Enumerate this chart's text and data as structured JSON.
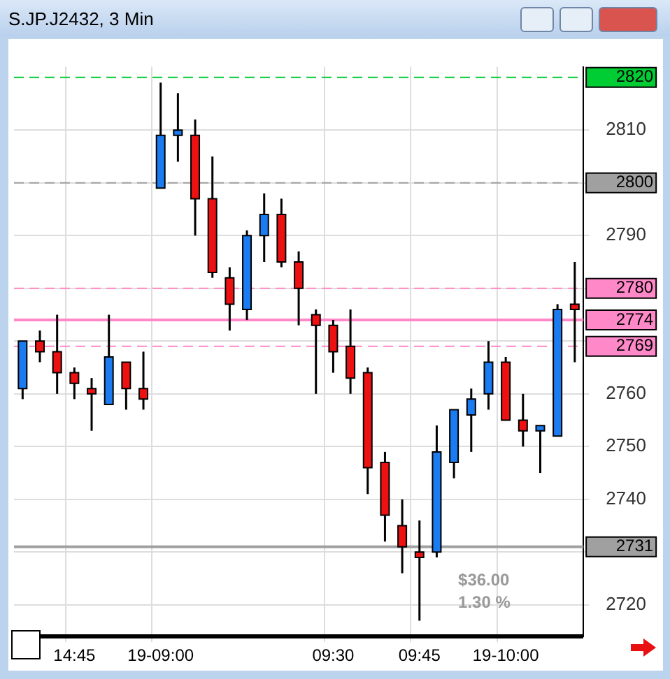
{
  "chart_data": {
    "type": "candlestick",
    "title": "S.JP.J2432, 3 Min",
    "categories": [
      null,
      null,
      null,
      "14:45",
      null,
      null,
      null,
      null,
      "19-09:00",
      null,
      null,
      null,
      null,
      null,
      null,
      null,
      null,
      null,
      "09:30",
      null,
      null,
      null,
      null,
      "09:45",
      null,
      null,
      null,
      null,
      "19-10:00",
      null,
      null,
      null,
      null
    ],
    "ohlc": [
      [
        2761,
        2770,
        2759,
        2770
      ],
      [
        2770,
        2772,
        2766,
        2768
      ],
      [
        2768,
        2775,
        2760,
        2764
      ],
      [
        2764,
        2765,
        2759,
        2762
      ],
      [
        2761,
        2763,
        2753,
        2760
      ],
      [
        2758,
        2775,
        2758,
        2767
      ],
      [
        2766,
        2766,
        2757,
        2761
      ],
      [
        2761,
        2768,
        2757,
        2759
      ],
      [
        2799,
        2819,
        2799,
        2809
      ],
      [
        2809,
        2817,
        2804,
        2810
      ],
      [
        2809,
        2812,
        2790,
        2797
      ],
      [
        2797,
        2805,
        2782,
        2783
      ],
      [
        2782,
        2784,
        2772,
        2777
      ],
      [
        2776,
        2791,
        2774,
        2790
      ],
      [
        2790,
        2798,
        2785,
        2794
      ],
      [
        2794,
        2797,
        2784,
        2785
      ],
      [
        2785,
        2787,
        2773,
        2780
      ],
      [
        2775,
        2776,
        2760,
        2773
      ],
      [
        2773,
        2774,
        2764,
        2768
      ],
      [
        2769,
        2776,
        2760,
        2763
      ],
      [
        2764,
        2765,
        2741,
        2746
      ],
      [
        2747,
        2749,
        2732,
        2737
      ],
      [
        2735,
        2740,
        2726,
        2731
      ],
      [
        2730,
        2736,
        2717,
        2729
      ],
      [
        2730,
        2754,
        2729,
        2749
      ],
      [
        2747,
        2757,
        2744,
        2757
      ],
      [
        2756,
        2761,
        2749,
        2759
      ],
      [
        2760,
        2770,
        2757,
        2766
      ],
      [
        2766,
        2767,
        2755,
        2755
      ],
      [
        2755,
        2760,
        2750,
        2753
      ],
      [
        2753,
        2754,
        2745,
        2754
      ],
      [
        2752,
        2777,
        2752,
        2776
      ],
      [
        2777,
        2785,
        2766,
        2776
      ]
    ],
    "colors": [
      "#1a7cf0",
      "#ee1111",
      "#ee1111",
      "#ee1111",
      "#ee1111",
      "#1a7cf0",
      "#ee1111",
      "#ee1111",
      "#1a7cf0",
      "#1a7cf0",
      "#ee1111",
      "#ee1111",
      "#ee1111",
      "#1a7cf0",
      "#1a7cf0",
      "#ee1111",
      "#ee1111",
      "#ee1111",
      "#ee1111",
      "#ee1111",
      "#ee1111",
      "#ee1111",
      "#ee1111",
      "#ee1111",
      "#1a7cf0",
      "#1a7cf0",
      "#1a7cf0",
      "#1a7cf0",
      "#ee1111",
      "#ee1111",
      "#1a7cf0",
      "#1a7cf0",
      "#ee1111"
    ],
    "ylim": [
      2714,
      2822
    ],
    "yticks": [
      2720,
      {
        "value": 2730,
        "label": null
      },
      2740,
      2750,
      2760,
      {
        "value": 2770,
        "label": null
      },
      {
        "value": 2780,
        "label": null
      },
      2790,
      {
        "value": 2800,
        "label": null
      },
      2810
    ],
    "ref_lines": [
      {
        "axis": "y",
        "value": 2820,
        "label": "2820",
        "color": "#00cc33",
        "line_style": "dashed"
      },
      {
        "axis": "y",
        "value": 2800,
        "label": "2800",
        "color": "#a0a0a0",
        "line_style": "dashed"
      },
      {
        "axis": "y",
        "value": 2780,
        "label": "2780",
        "color": "#ff88c8",
        "line_style": "dashed"
      },
      {
        "axis": "y",
        "value": 2774,
        "label": "2774",
        "color": "#ff88c8",
        "line_style": "solid"
      },
      {
        "axis": "y",
        "value": 2769,
        "label": "2769",
        "color": "#ff88c8",
        "line_style": "dashed"
      },
      {
        "axis": "y",
        "value": 2731,
        "label": "2731",
        "color": "#a0a0a0",
        "line_style": "solid"
      }
    ],
    "annotations": [
      "$36.00",
      "1.30 %"
    ],
    "grid": true,
    "legend": false
  }
}
